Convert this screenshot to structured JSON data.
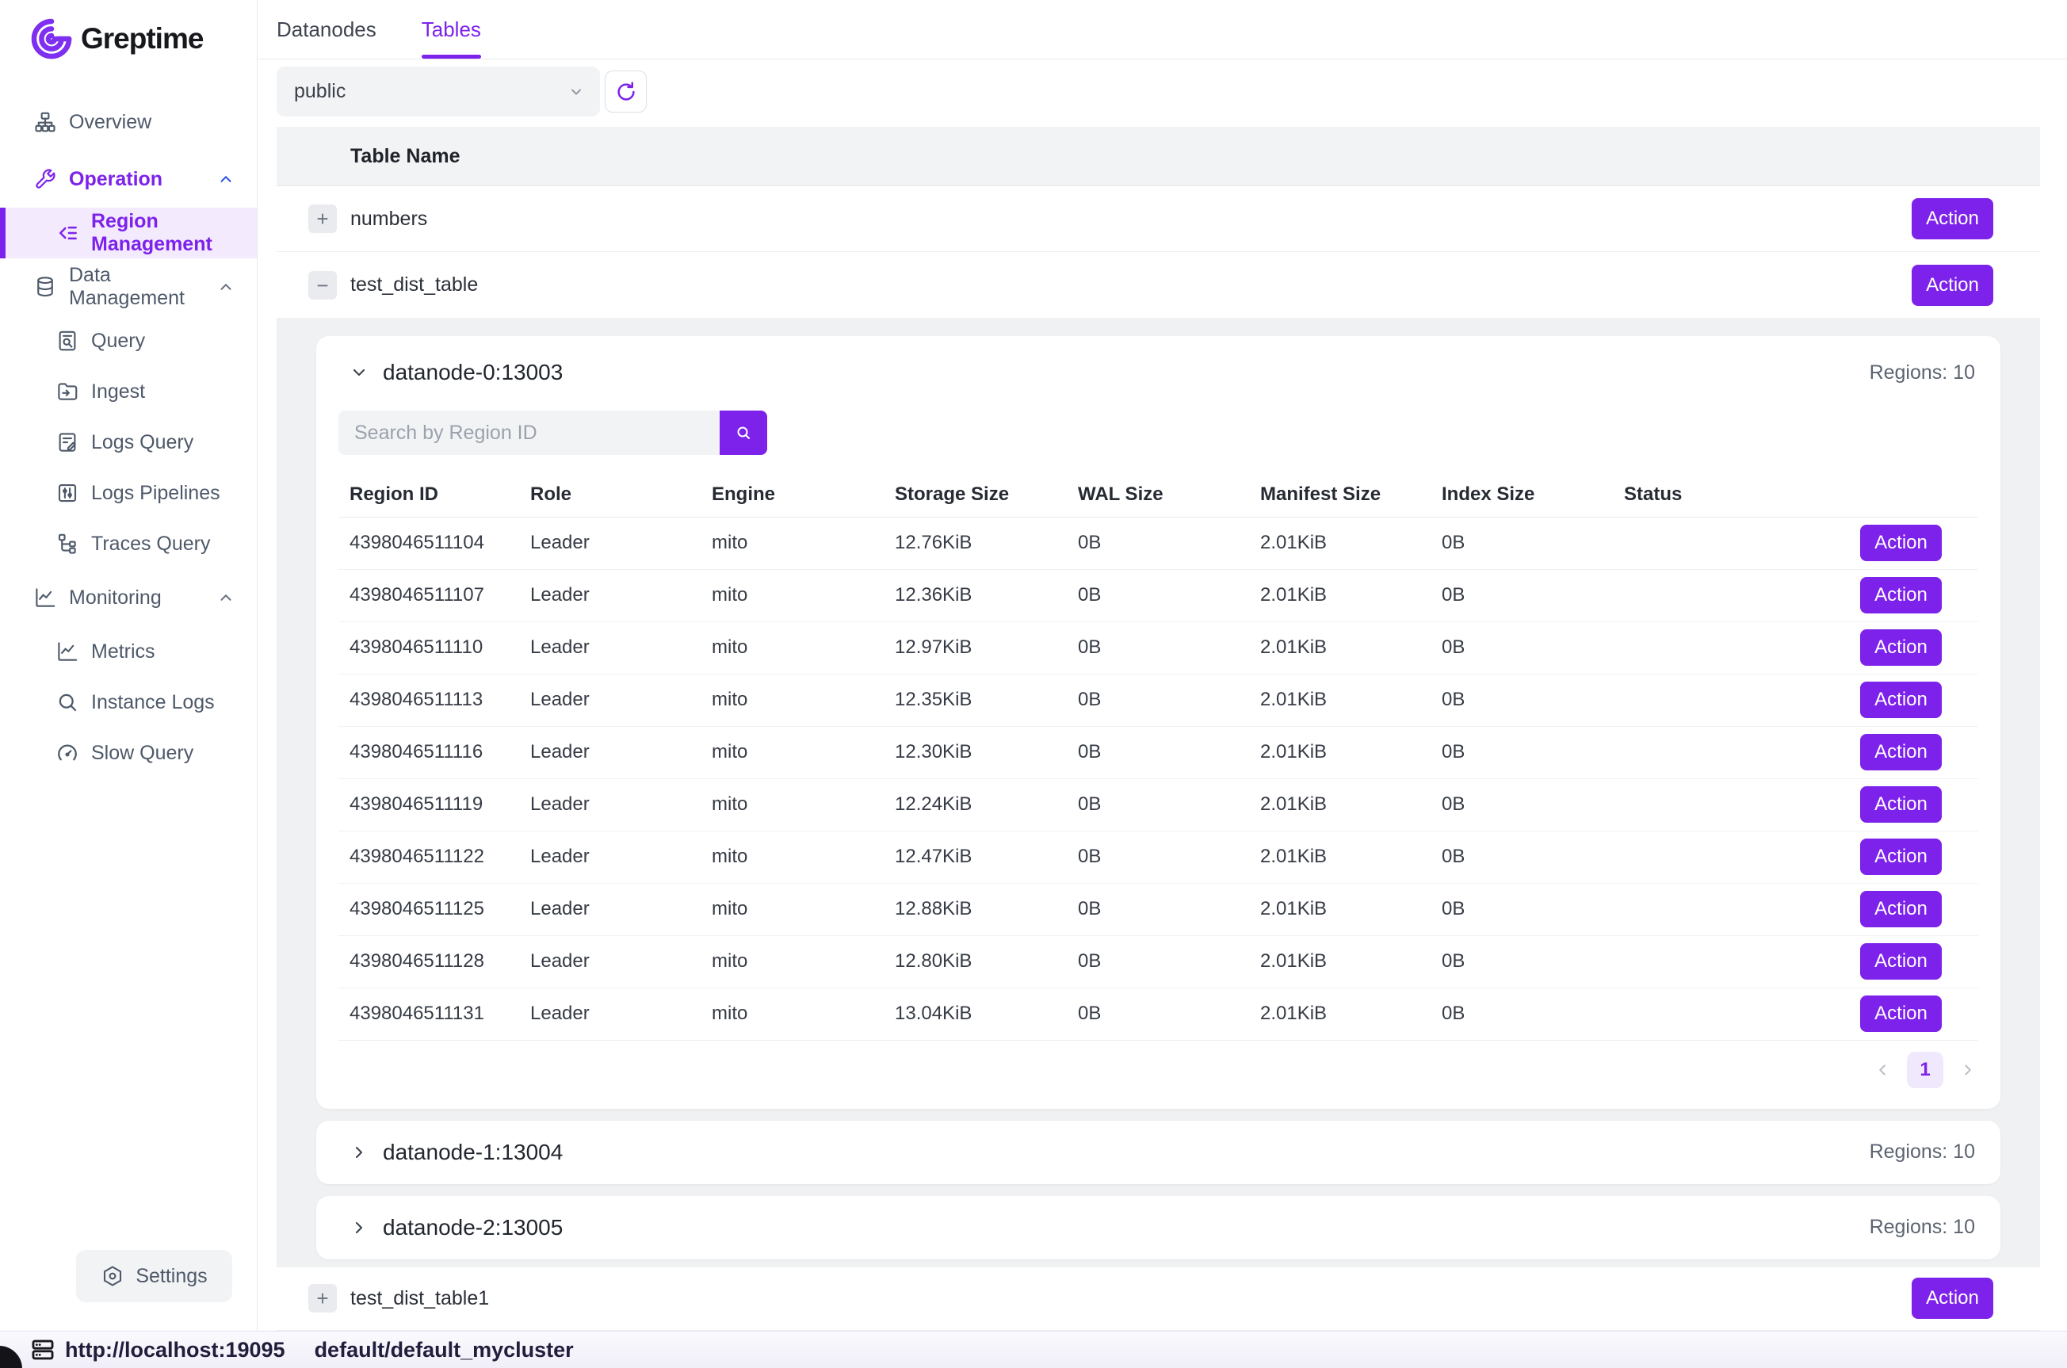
{
  "brand": {
    "name": "Greptime"
  },
  "sidebar": {
    "items": [
      {
        "label": "Overview"
      },
      {
        "label": "Operation"
      },
      {
        "label": "Region Management"
      },
      {
        "label": "Data Management"
      },
      {
        "label": "Query"
      },
      {
        "label": "Ingest"
      },
      {
        "label": "Logs Query"
      },
      {
        "label": "Logs Pipelines"
      },
      {
        "label": "Traces Query"
      },
      {
        "label": "Monitoring"
      },
      {
        "label": "Metrics"
      },
      {
        "label": "Instance Logs"
      },
      {
        "label": "Slow Query"
      }
    ],
    "settings_label": "Settings"
  },
  "tabs": {
    "datanodes": "Datanodes",
    "tables": "Tables",
    "active": "Tables"
  },
  "toolbar": {
    "database_selected": "public"
  },
  "tables_list": {
    "header": "Table Name",
    "action_label": "Action",
    "rows": [
      {
        "name": "numbers",
        "expand_symbol": "+"
      },
      {
        "name": "test_dist_table",
        "expand_symbol": "−"
      },
      {
        "name": "test_dist_table1",
        "expand_symbol": "+"
      }
    ]
  },
  "datanodes": [
    {
      "name": "datanode-0:13003",
      "regions_label": "Regions: 10",
      "expanded": true
    },
    {
      "name": "datanode-1:13004",
      "regions_label": "Regions: 10",
      "expanded": false
    },
    {
      "name": "datanode-2:13005",
      "regions_label": "Regions: 10",
      "expanded": false
    }
  ],
  "region_table": {
    "search_placeholder": "Search by Region ID",
    "columns": [
      "Region ID",
      "Role",
      "Engine",
      "Storage Size",
      "WAL Size",
      "Manifest Size",
      "Index Size",
      "Status"
    ],
    "rows": [
      [
        "4398046511104",
        "Leader",
        "mito",
        "12.76KiB",
        "0B",
        "2.01KiB",
        "0B",
        ""
      ],
      [
        "4398046511107",
        "Leader",
        "mito",
        "12.36KiB",
        "0B",
        "2.01KiB",
        "0B",
        ""
      ],
      [
        "4398046511110",
        "Leader",
        "mito",
        "12.97KiB",
        "0B",
        "2.01KiB",
        "0B",
        ""
      ],
      [
        "4398046511113",
        "Leader",
        "mito",
        "12.35KiB",
        "0B",
        "2.01KiB",
        "0B",
        ""
      ],
      [
        "4398046511116",
        "Leader",
        "mito",
        "12.30KiB",
        "0B",
        "2.01KiB",
        "0B",
        ""
      ],
      [
        "4398046511119",
        "Leader",
        "mito",
        "12.24KiB",
        "0B",
        "2.01KiB",
        "0B",
        ""
      ],
      [
        "4398046511122",
        "Leader",
        "mito",
        "12.47KiB",
        "0B",
        "2.01KiB",
        "0B",
        ""
      ],
      [
        "4398046511125",
        "Leader",
        "mito",
        "12.88KiB",
        "0B",
        "2.01KiB",
        "0B",
        ""
      ],
      [
        "4398046511128",
        "Leader",
        "mito",
        "12.80KiB",
        "0B",
        "2.01KiB",
        "0B",
        ""
      ],
      [
        "4398046511131",
        "Leader",
        "mito",
        "13.04KiB",
        "0B",
        "2.01KiB",
        "0B",
        ""
      ]
    ],
    "action_label": "Action",
    "pagination": {
      "current_page": "1"
    }
  },
  "statusbar": {
    "endpoint": "http://localhost:19095",
    "cluster": "default/default_mycluster"
  },
  "colors": {
    "accent": "#7d22ea",
    "accent_light_bg": "#f3eafd",
    "logo_purple": "#7e2ff0",
    "section_chevron_blue": "#2f54eb",
    "table_header_bg": "#f2f3f5",
    "expanded_bg": "#f0f1f3",
    "statusbar_bg": "#f7f6fc",
    "page_badge_bg": "#f0e9fd"
  }
}
